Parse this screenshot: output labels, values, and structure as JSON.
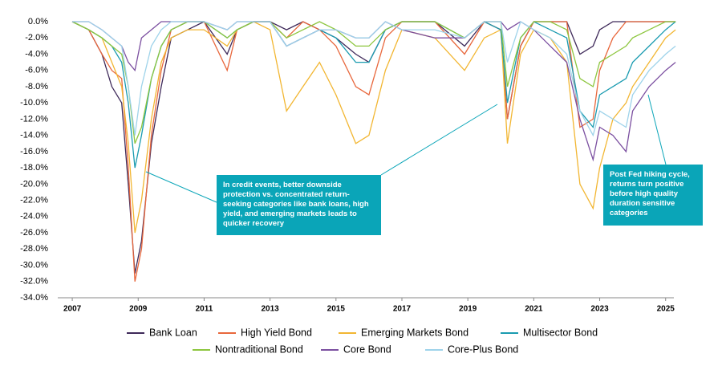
{
  "chart_data": {
    "type": "line",
    "x": [
      2007.0,
      2007.5,
      2007.9,
      2008.2,
      2008.5,
      2008.7,
      2008.9,
      2009.1,
      2009.4,
      2009.7,
      2010.0,
      2010.5,
      2011.0,
      2011.7,
      2012.0,
      2012.5,
      2013.0,
      2013.5,
      2014.0,
      2014.5,
      2015.0,
      2015.6,
      2016.0,
      2016.5,
      2017.0,
      2018.0,
      2018.9,
      2019.5,
      2020.0,
      2020.2,
      2020.6,
      2021.0,
      2021.5,
      2022.0,
      2022.4,
      2022.8,
      2023.0,
      2023.4,
      2023.8,
      2024.0,
      2024.5,
      2025.0,
      2025.3
    ],
    "series": [
      {
        "name": "Bank Loan",
        "color": "#3f2a5a",
        "values": [
          0,
          -1,
          -4,
          -8,
          -10,
          -20,
          -31,
          -27,
          -15,
          -8,
          -2,
          -1,
          0,
          -4,
          -1,
          0,
          0,
          -1,
          0,
          -1,
          -2,
          -4,
          -5,
          -1,
          0,
          0,
          -3,
          0,
          -1,
          -12,
          -3,
          0,
          0,
          0,
          -4,
          -3,
          -1,
          0,
          0,
          0,
          0,
          0,
          0
        ]
      },
      {
        "name": "High Yield Bond",
        "color": "#e8673c",
        "values": [
          0,
          -1,
          -4,
          -6,
          -7,
          -18,
          -32,
          -28,
          -14,
          -6,
          -1,
          0,
          0,
          -6,
          -1,
          0,
          0,
          -2,
          0,
          -1,
          -3,
          -8,
          -9,
          -2,
          0,
          0,
          -4,
          0,
          -1,
          -12,
          -3,
          0,
          0,
          0,
          -13,
          -12,
          -6,
          -2,
          0,
          0,
          0,
          0,
          0
        ]
      },
      {
        "name": "Emerging Markets Bond",
        "color": "#f2b632",
        "values": [
          0,
          -1,
          -2,
          -5,
          -8,
          -15,
          -26,
          -22,
          -12,
          -5,
          -2,
          -1,
          -1,
          -3,
          -1,
          0,
          -1,
          -11,
          -8,
          -5,
          -9,
          -15,
          -14,
          -6,
          -1,
          -2,
          -6,
          -2,
          -1,
          -15,
          -4,
          -1,
          -2,
          -5,
          -20,
          -23,
          -18,
          -12,
          -10,
          -8,
          -5,
          -2,
          -1
        ]
      },
      {
        "name": "Multisector Bond",
        "color": "#1a9bb0",
        "values": [
          0,
          -1,
          -2,
          -3,
          -5,
          -10,
          -18,
          -14,
          -7,
          -3,
          -1,
          0,
          0,
          -2,
          -1,
          0,
          0,
          -3,
          -2,
          -1,
          -2,
          -5,
          -5,
          -1,
          0,
          0,
          -2,
          0,
          -1,
          -10,
          -2,
          0,
          -1,
          -2,
          -11,
          -13,
          -9,
          -8,
          -7,
          -5,
          -3,
          -1,
          0
        ]
      },
      {
        "name": "Nontraditional Bond",
        "color": "#8dc63f",
        "values": [
          0,
          -1,
          -2,
          -3,
          -4,
          -8,
          -15,
          -13,
          -7,
          -3,
          -1,
          0,
          0,
          -2,
          -1,
          0,
          0,
          -2,
          -1,
          0,
          -1,
          -3,
          -3,
          -1,
          0,
          0,
          -2,
          0,
          0,
          -8,
          -2,
          0,
          0,
          -1,
          -7,
          -8,
          -5,
          -4,
          -3,
          -2,
          -1,
          0,
          0
        ]
      },
      {
        "name": "Core Bond",
        "color": "#7b4fa0",
        "values": [
          0,
          0,
          -1,
          -2,
          -3,
          -5,
          -6,
          -2,
          -1,
          0,
          0,
          0,
          0,
          -1,
          0,
          0,
          0,
          -3,
          -2,
          -1,
          -1,
          -2,
          -2,
          0,
          -1,
          -2,
          -2,
          0,
          0,
          -1,
          0,
          -1,
          -3,
          -5,
          -12,
          -17,
          -13,
          -14,
          -16,
          -11,
          -8,
          -6,
          -5
        ]
      },
      {
        "name": "Core-Plus Bond",
        "color": "#9ed3ea",
        "values": [
          0,
          0,
          -1,
          -2,
          -3,
          -8,
          -14,
          -8,
          -3,
          -1,
          0,
          0,
          0,
          -1,
          0,
          0,
          0,
          -3,
          -2,
          -1,
          -1,
          -2,
          -2,
          0,
          -1,
          -1,
          -2,
          0,
          0,
          -5,
          0,
          -1,
          -2,
          -4,
          -11,
          -14,
          -11,
          -12,
          -13,
          -9,
          -6,
          -4,
          -3
        ]
      }
    ],
    "xlim": [
      2006.56,
      2025.25
    ],
    "xticks": [
      2007,
      2009,
      2011,
      2013,
      2015,
      2017,
      2019,
      2021,
      2023,
      2025
    ],
    "ylim": [
      -34,
      0
    ],
    "yticks": [
      {
        "value": 0,
        "label": "0.0%"
      },
      {
        "value": -2,
        "label": "-2.0%"
      },
      {
        "value": -4,
        "label": "-4.0%"
      },
      {
        "value": -6,
        "label": "-6.0%"
      },
      {
        "value": -8,
        "label": "-8.0%"
      },
      {
        "value": -10,
        "label": "-10.0%"
      },
      {
        "value": -12,
        "label": "-12.0%"
      },
      {
        "value": -14,
        "label": "-14.0%"
      },
      {
        "value": -16,
        "label": "-16.0%"
      },
      {
        "value": -18,
        "label": "-18.0%"
      },
      {
        "value": -20,
        "label": "-20.0%"
      },
      {
        "value": -22,
        "label": "-22.0%"
      },
      {
        "value": -24,
        "label": "-24.0%"
      },
      {
        "value": -26,
        "label": "-26.0%"
      },
      {
        "value": -28,
        "label": "-28.0%"
      },
      {
        "value": -30,
        "label": "-30.0%"
      },
      {
        "value": -32,
        "label": "-32.0%"
      },
      {
        "value": -34,
        "label": "-34.0%"
      }
    ],
    "grid": false,
    "annotations": [
      "In credit events, better downside protection vs. concentrated return-seeking categories like bank loans, high yield, and emerging markets leads to quicker recovery",
      "Post Fed hiking cycle, returns turn positive before high quality duration sensitive categories"
    ]
  }
}
